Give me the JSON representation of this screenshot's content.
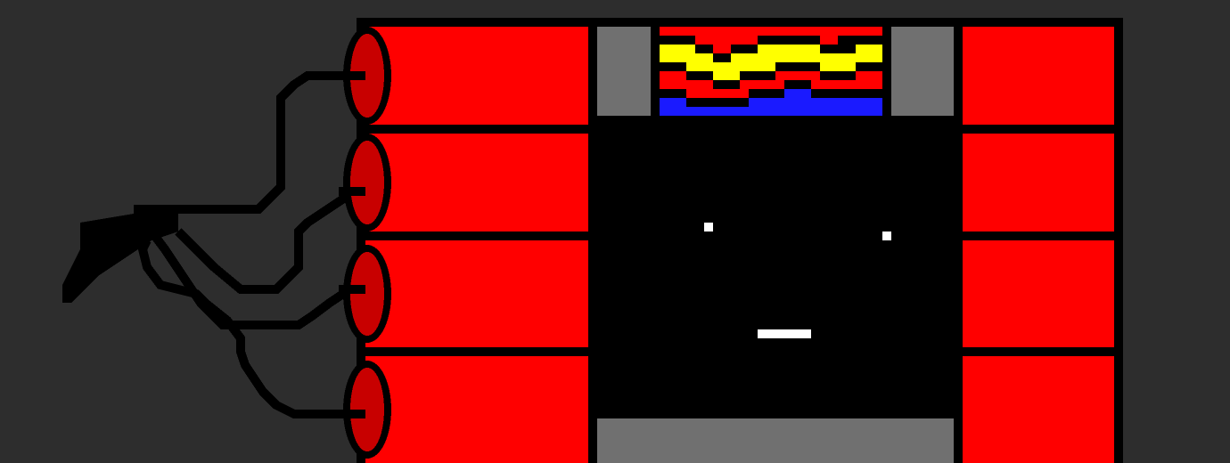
{
  "scene": {
    "subject": "dynamite-bundle-with-face",
    "colors": {
      "background": "#2d2d2d",
      "outline": "#000000",
      "stick": "#ff0000",
      "cap": "#c80000",
      "metal": "#707070",
      "display_red": "#ff0000",
      "display_yellow": "#ffff00",
      "display_blue": "#1a1aff",
      "face": "#ffffff"
    },
    "left_sticks": 4,
    "right_sticks": 4,
    "wires": 4
  }
}
